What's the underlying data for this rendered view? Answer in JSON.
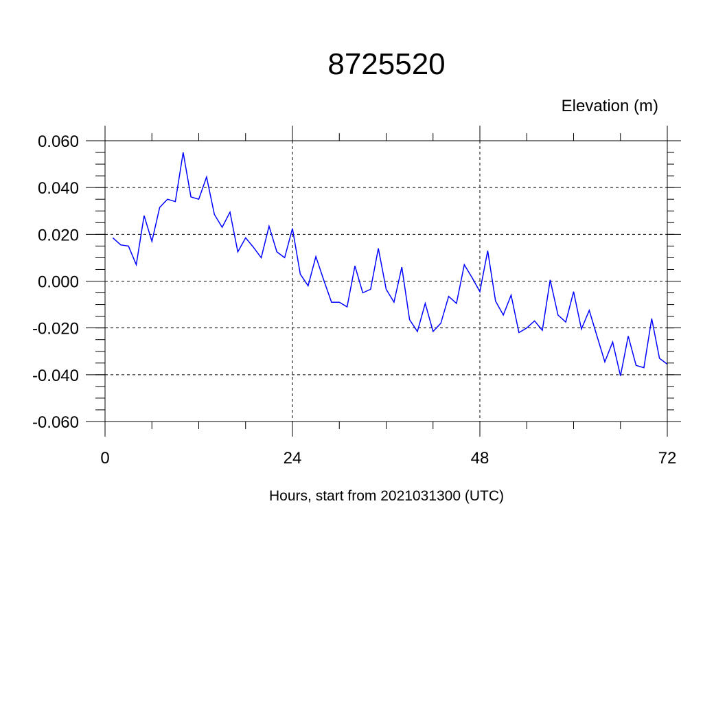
{
  "chart_data": {
    "type": "line",
    "title": "8725520",
    "ylabel": "Elevation (m)",
    "xlabel": "Hours, start from 2021031300 (UTC)",
    "xlim": [
      0,
      72
    ],
    "ylim": [
      -0.06,
      0.06
    ],
    "xticks": [
      0,
      24,
      48,
      72
    ],
    "xtick_labels": [
      "0",
      "24",
      "48",
      "72"
    ],
    "yticks": [
      0.06,
      0.04,
      0.02,
      0.0,
      -0.02,
      -0.04,
      -0.06
    ],
    "ytick_labels": [
      "0.060",
      "0.040",
      "0.020",
      "0.000",
      "-0.020",
      "-0.040",
      "-0.060"
    ],
    "grid": "dashed, at major ticks",
    "colors": {
      "line": "#0000ff",
      "axis": "#000000",
      "grid": "#000000"
    },
    "series": [
      {
        "x": [
          1,
          2,
          3,
          4,
          5,
          6,
          7,
          8,
          9,
          10,
          11,
          12,
          13,
          14,
          15,
          16,
          17,
          18,
          19,
          20,
          21,
          22,
          23,
          24,
          25,
          26,
          27,
          28,
          29,
          30,
          31,
          32,
          33,
          34,
          35,
          36,
          37,
          38,
          39,
          40,
          41,
          42,
          43,
          44,
          45,
          46,
          47,
          48,
          49,
          50,
          51,
          52,
          53,
          54,
          55,
          56,
          57,
          58,
          59,
          60,
          61,
          62,
          63,
          64,
          65,
          66,
          67,
          68,
          69,
          70,
          71,
          72
        ],
        "values": [
          0.0185,
          0.0155,
          0.015,
          0.007,
          0.028,
          0.017,
          0.0315,
          0.035,
          0.034,
          0.055,
          0.036,
          0.035,
          0.0445,
          0.0285,
          0.023,
          0.0295,
          0.0125,
          0.0185,
          0.0145,
          0.01,
          0.0235,
          0.0125,
          0.01,
          0.0225,
          0.003,
          -0.002,
          0.0105,
          0.0005,
          -0.009,
          -0.009,
          -0.011,
          0.0065,
          -0.005,
          -0.0035,
          0.014,
          -0.0035,
          -0.009,
          0.006,
          -0.0165,
          -0.0215,
          -0.0095,
          -0.0215,
          -0.018,
          -0.0065,
          -0.0095,
          0.007,
          0.0015,
          -0.0045,
          0.013,
          -0.0085,
          -0.0145,
          -0.006,
          -0.022,
          -0.02,
          -0.017,
          -0.021,
          0.0005,
          -0.0145,
          -0.0175,
          -0.0045,
          -0.0205,
          -0.0125,
          -0.0235,
          -0.0345,
          -0.026,
          -0.0405,
          -0.0235,
          -0.036,
          -0.037,
          -0.016,
          -0.033,
          -0.0355
        ]
      }
    ]
  }
}
